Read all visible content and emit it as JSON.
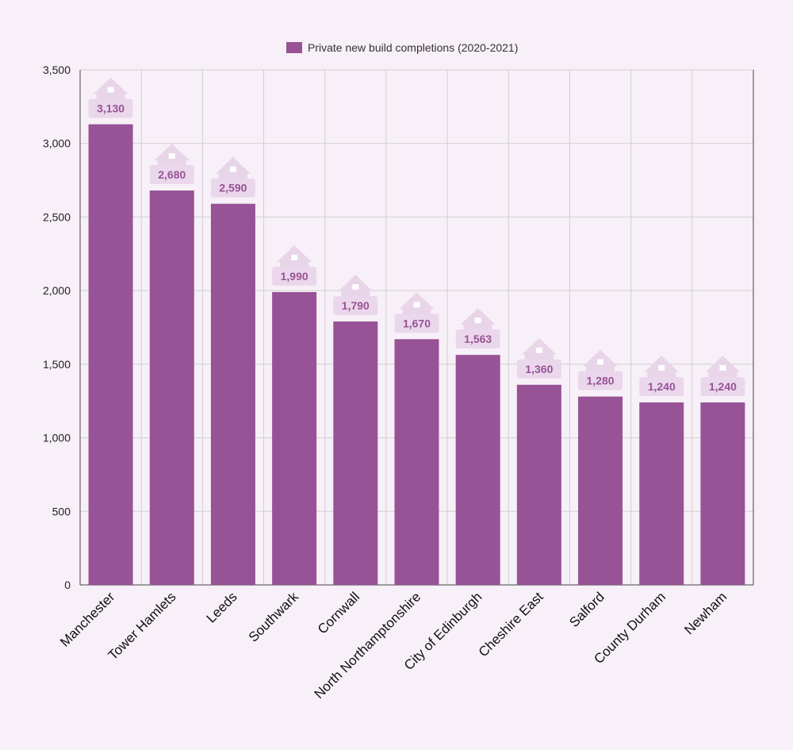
{
  "chart_data": {
    "type": "bar",
    "legend": "Private new build completions (2020-2021)",
    "categories": [
      "Manchester",
      "Tower Hamlets",
      "Leeds",
      "Southwark",
      "Cornwall",
      "North Northamptonshire",
      "City of Edinburgh",
      "Cheshire East",
      "Salford",
      "County Durham",
      "Newham"
    ],
    "values": [
      3130,
      2680,
      2590,
      1990,
      1790,
      1670,
      1563,
      1360,
      1280,
      1240,
      1240
    ],
    "data_labels": [
      "3,130",
      "2,680",
      "2,590",
      "1,990",
      "1,790",
      "1,670",
      "1,563",
      "1,360",
      "1,280",
      "1,240",
      "1,240"
    ],
    "ylim": [
      0,
      3500
    ],
    "yticks": [
      0,
      500,
      1000,
      1500,
      2000,
      2500,
      3000,
      3500
    ],
    "ytick_labels": [
      "0",
      "500",
      "1,000",
      "1,500",
      "2,000",
      "2,500",
      "3,000",
      "3,500"
    ],
    "grid": true,
    "legend_position": "top-center",
    "colors": {
      "bar": "#975396",
      "label_bg": "#ebd7eb",
      "house": "#e8d5e8",
      "label_text": "#975396",
      "grid": "#cfcfcf",
      "background": "#f8f0f8"
    }
  }
}
